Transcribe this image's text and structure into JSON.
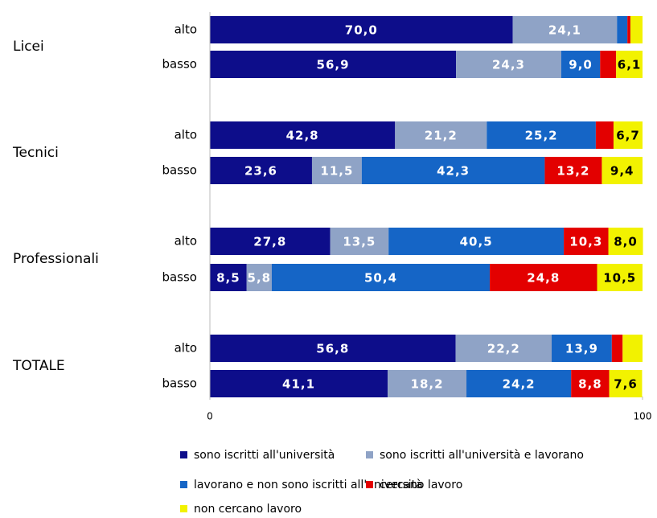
{
  "chart_data": {
    "type": "stacked-bar-horizontal",
    "groups": [
      "Licei",
      "Tecnici",
      "Professionali",
      "TOTALE"
    ],
    "categories": [
      "alto",
      "basso",
      "alto",
      "basso",
      "alto",
      "basso",
      "alto",
      "basso"
    ],
    "xlim": [
      0,
      100
    ],
    "xticks": [
      0,
      100
    ],
    "series": [
      {
        "name": "sono iscritti all'università",
        "color": "#0d0d8a",
        "values": [
          70.0,
          56.9,
          42.8,
          23.6,
          27.8,
          8.5,
          56.8,
          41.1
        ],
        "value_labels": [
          "70,0",
          "56,9",
          "42,8",
          "23,6",
          "27,8",
          "8,5",
          "56,8",
          "41,1"
        ]
      },
      {
        "name": "sono iscritti all'università e lavorano",
        "color": "#8fa3c6",
        "values": [
          24.1,
          24.3,
          21.2,
          11.5,
          13.5,
          5.8,
          22.2,
          18.2
        ],
        "value_labels": [
          "24,1",
          "24,3",
          "21,2",
          "11,5",
          "13,5",
          "5,8",
          "22,2",
          "18,2"
        ]
      },
      {
        "name": "lavorano e non sono iscritti all'università",
        "color": "#1565c6",
        "values": [
          2.4,
          9.0,
          25.2,
          42.3,
          40.5,
          50.4,
          13.9,
          24.2
        ],
        "value_labels": [
          null,
          "9,0",
          "25,2",
          "42,3",
          "40,5",
          "50,4",
          "13,9",
          "24,2"
        ]
      },
      {
        "name": "cercano lavoro",
        "color": "#e30000",
        "values": [
          0.7,
          3.7,
          4.1,
          13.2,
          10.3,
          24.8,
          2.5,
          8.8
        ],
        "value_labels": [
          null,
          null,
          null,
          "13,2",
          "10,3",
          "24,8",
          null,
          "8,8"
        ]
      },
      {
        "name": "non cercano lavoro",
        "color": "#f2f200",
        "values": [
          2.8,
          6.1,
          6.7,
          9.4,
          8.0,
          10.5,
          4.6,
          7.6
        ],
        "value_labels": [
          null,
          "6,1",
          "6,7",
          "9,4",
          "8,0",
          "10,5",
          null,
          "7,6"
        ]
      }
    ]
  }
}
